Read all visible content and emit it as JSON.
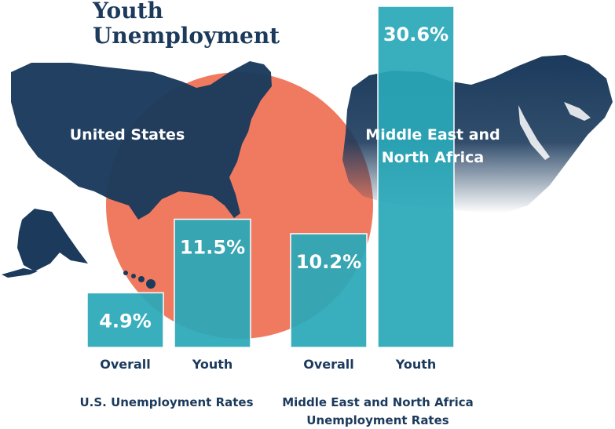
{
  "title_lines": [
    "Youth",
    "Unemployment"
  ],
  "regions": [
    "United States",
    "Middle East and North Africa"
  ],
  "colors": {
    "bar": "#2aa8b8",
    "map": "#1b3a5c",
    "circle": "#f07a60",
    "text_dark": "#1b3a5c"
  },
  "chart_data": {
    "type": "bar",
    "title": "Youth Unemployment",
    "unit": "%",
    "groups": [
      {
        "name": "U.S. Unemployment Rates",
        "categories": [
          "Overall",
          "Youth"
        ],
        "values": [
          4.9,
          11.5
        ],
        "labels": [
          "4.9%",
          "11.5%"
        ]
      },
      {
        "name_lines": [
          "Middle East and North Africa",
          "Unemployment Rates"
        ],
        "categories": [
          "Overall",
          "Youth"
        ],
        "values": [
          10.2,
          30.6
        ],
        "labels": [
          "10.2%",
          "30.6%"
        ]
      }
    ],
    "ylim": [
      0,
      30.6
    ]
  }
}
